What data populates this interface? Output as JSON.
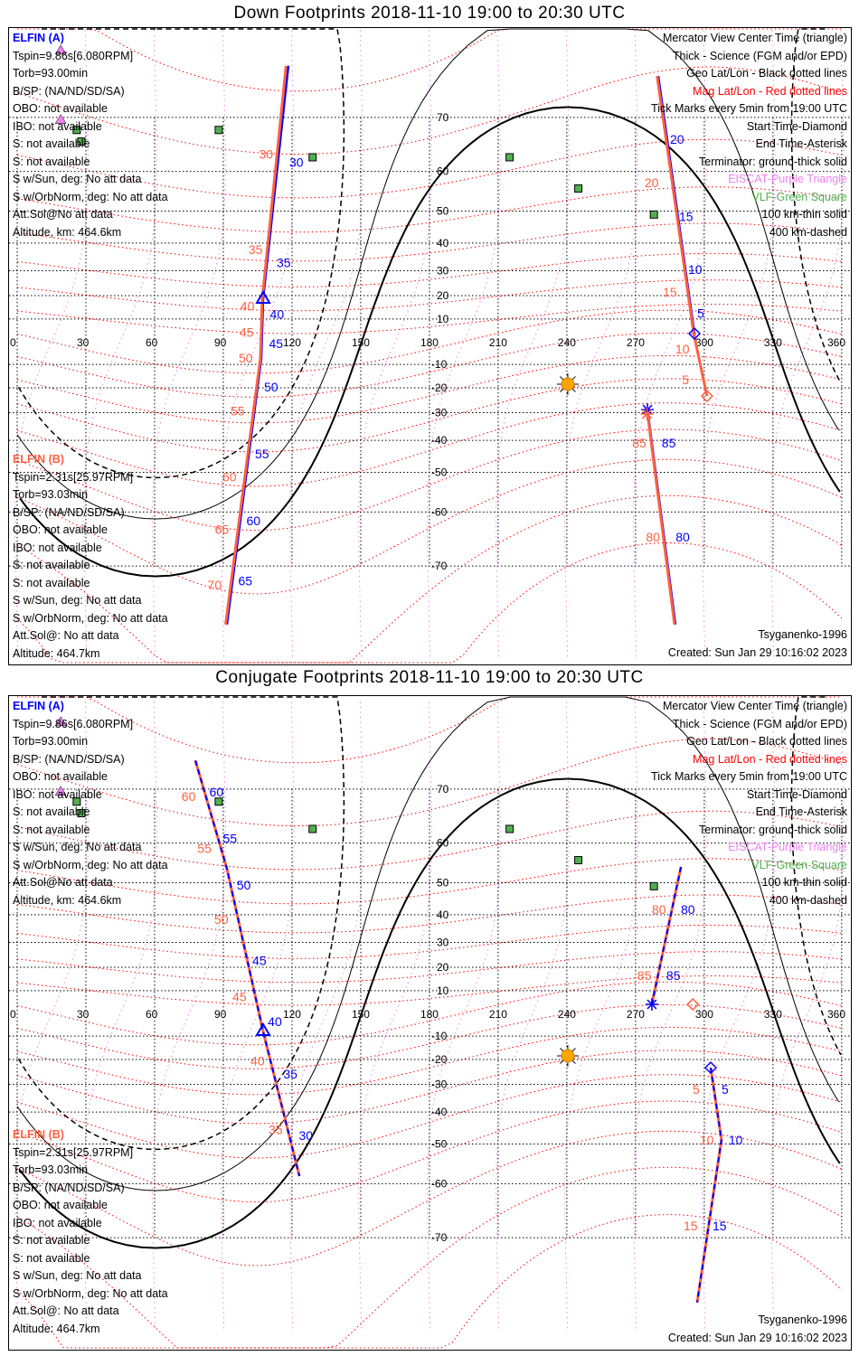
{
  "panels": [
    {
      "title": "Down Footprints 2018-11-10 19:00 to 20:30 UTC",
      "sat_a": {
        "name": "ELFIN (A)",
        "color": "#0000ff",
        "lines": [
          "Tspin=9.86s[6.080RPM]",
          "Torb=93.00min",
          "B/SP: (NA/ND/SD/SA)",
          "OBO: not available",
          "IBO: not available",
          "S: not available",
          "S: not available",
          "S w/Sun, deg: No att data",
          "S w/OrbNorm, deg: No att data",
          "Att.Sol@No att data",
          "Altitude, km: 464.6km"
        ]
      },
      "sat_b": {
        "name": "ELFIN (B)",
        "color": "#ff6040",
        "lines": [
          "Tspin=2.31s[25.97RPM]",
          "Torb=93.03min",
          "B/SP: (NA/ND/SD/SA)",
          "OBO: not available",
          "IBO: not available",
          "S: not available",
          "S: not available",
          "S w/Sun, deg: No att data",
          "S w/OrbNorm, deg: No att data",
          "Att.Sol@: No att data",
          "Altitude: 464.7km"
        ]
      },
      "footer_right": [
        "Tsyganenko-1996",
        "Created: Sun Jan 29 10:16:02 2023"
      ]
    },
    {
      "title": "Conjugate Footprints 2018-11-10 19:00 to 20:30 UTC",
      "sat_a": {
        "name": "ELFIN (A)",
        "color": "#0000ff",
        "lines": [
          "Tspin=9.86s[6.080RPM]",
          "Torb=93.00min",
          "B/SP: (NA/ND/SD/SA)",
          "OBO: not available",
          "IBO: not available",
          "S: not available",
          "S: not available",
          "S w/Sun, deg: No att data",
          "S w/OrbNorm, deg: No att data",
          "Att.Sol@No att data",
          "Altitude, km: 464.6km"
        ]
      },
      "sat_b": {
        "name": "ELFIN (B)",
        "color": "#ff6040",
        "lines": [
          "Tspin=2.31s[25.97RPM]",
          "Torb=93.03min",
          "B/SP: (NA/ND/SD/SA)",
          "OBO: not available",
          "IBO: not available",
          "S: not available",
          "S: not available",
          "S w/Sun, deg: No att data",
          "S w/OrbNorm, deg: No att data",
          "Att.Sol@: No att data",
          "Altitude: 464.7km"
        ]
      },
      "footer_right": [
        "Tsyganenko-1996",
        "Created: Sun Jan 29 10:16:02 2023"
      ]
    }
  ],
  "legend": [
    {
      "text": "Mercator View Center Time (triangle)",
      "color": "#000000"
    },
    {
      "text": "Thick - Science (FGM and/or EPD)",
      "color": "#000000"
    },
    {
      "text": "Geo Lat/Lon - Black dotted lines",
      "color": "#000000"
    },
    {
      "text": "Mag Lat/Lon - Red dotted lines",
      "color": "#ff0000"
    },
    {
      "text": "Tick Marks every 5min from 19:00 UTC",
      "color": "#000000"
    },
    {
      "text": "Start Time-Diamond",
      "color": "#000000"
    },
    {
      "text": "End Time-Asterisk",
      "color": "#000000"
    },
    {
      "text": "Terminator: ground-thick solid",
      "color": "#000000"
    },
    {
      "text": "EISCAT-Purple Triangle",
      "color": "#ee82ee"
    },
    {
      "text": "VLF-Green Square",
      "color": "#50b050"
    },
    {
      "text": "100 km-thin solid",
      "color": "#000000"
    },
    {
      "text": "400 km-dashed",
      "color": "#000000"
    }
  ],
  "chart_data": {
    "type": "map",
    "projection": "mercator",
    "lon_ticks": [
      "0",
      "30",
      "60",
      "90",
      "120",
      "150",
      "180",
      "210",
      "240",
      "270",
      "300",
      "330",
      "360"
    ],
    "lat_ticks": [
      "70",
      "60",
      "50",
      "40",
      "30",
      "20",
      "10",
      "-10",
      "-20",
      "-30",
      "-40",
      "-50",
      "-60",
      "-70"
    ],
    "subsolar": {
      "lon": 240.4,
      "lat": -18.5
    },
    "vlf_stations": [
      [
        88,
        68
      ],
      [
        26,
        68
      ],
      [
        28,
        66
      ],
      [
        129,
        63
      ],
      [
        215,
        63
      ],
      [
        245,
        56
      ],
      [
        278,
        49
      ]
    ],
    "eiscat": [
      [
        19,
        69.6
      ],
      [
        19,
        78
      ]
    ],
    "maps": [
      {
        "tracks": [
          {
            "sat": "A",
            "color": "#0000ff",
            "points": [
              [
                118.4,
                76.5
              ],
              [
                107.4,
                18.5
              ],
              [
                106.6,
                -7.2
              ],
              [
                98.7,
                -56.8
              ],
              [
                91.6,
                -77.2
              ]
            ],
            "labels": [
              "30",
              "35",
              "40",
              "45",
              "50",
              "55",
              "60",
              "65"
            ],
            "dashed": false
          },
          {
            "sat": "B",
            "color": "#ff6040",
            "points": [
              [
                117.4,
                76.5
              ],
              [
                107.0,
                18.5
              ],
              [
                106.2,
                -7.2
              ],
              [
                98.2,
                -56.8
              ],
              [
                91.0,
                -77.2
              ]
            ],
            "labels": [
              "30",
              "35",
              "40",
              "45",
              "50",
              "55",
              "60",
              "65",
              "70"
            ],
            "dashed": false
          },
          {
            "sat": "A",
            "color": "#0000ff",
            "points": [
              [
                279.9,
                75.4
              ],
              [
                295.7,
                3.6
              ]
            ],
            "labels": [
              "20",
              "15",
              "10",
              "5"
            ],
            "dashed": false
          },
          {
            "sat": "B",
            "color": "#ff6040",
            "points": [
              [
                279.4,
                75.4
              ],
              [
                295.4,
                3.6
              ],
              [
                301.2,
                -23.4
              ]
            ],
            "labels": [
              "20",
              "15",
              "10",
              "5"
            ],
            "dashed": false
          },
          {
            "sat": "B",
            "color": "#0000ff",
            "points": [
              [
                275.2,
                -28.8
              ],
              [
                287.4,
                -77.2
              ]
            ],
            "labels": [
              "85",
              "80"
            ],
            "dashed": false
          },
          {
            "sat": "B",
            "color": "#ff6040",
            "points": [
              [
                275.0,
                -28.8
              ],
              [
                287.0,
                -77.2
              ]
            ],
            "labels": [
              "85",
              "80"
            ],
            "dashed": false
          }
        ],
        "start_diamonds": [
          [
            295.7,
            3.6,
            "#0000ff"
          ],
          [
            301.2,
            -23.4,
            "#ff6040"
          ]
        ],
        "end_asterisks": [
          [
            275.2,
            -28.8,
            "#0000ff"
          ],
          [
            275.0,
            -30.5,
            "#ff6040"
          ]
        ],
        "center_triangles": [
          [
            107.4,
            18.5
          ]
        ]
      },
      {
        "tracks": [
          {
            "sat": "A",
            "color": "#ff6040",
            "points": [
              [
                77.8,
                73.9
              ],
              [
                91.6,
                53.8
              ],
              [
                107.4,
                -8.0
              ],
              [
                123.2,
                -58.3
              ]
            ],
            "labels": [
              "60",
              "55",
              "50",
              "45",
              "40",
              "35"
            ],
            "dashed": false
          },
          {
            "sat": "A",
            "color": "#0000ff",
            "points": [
              [
                77.8,
                73.9
              ],
              [
                91.6,
                53.8
              ],
              [
                107.4,
                -8.0
              ],
              [
                123.2,
                -58.3
              ]
            ],
            "labels": [
              "60",
              "55",
              "50",
              "45",
              "40",
              "35",
              "30"
            ],
            "dashed": true
          },
          {
            "sat": "B",
            "color": "#ff6040",
            "points": [
              [
                289.8,
                54.3
              ],
              [
                277.1,
                4.0
              ]
            ],
            "labels": [
              "80",
              "85"
            ],
            "dashed": false
          },
          {
            "sat": "B",
            "color": "#0000ff",
            "points": [
              [
                289.8,
                54.3
              ],
              [
                277.1,
                4.0
              ]
            ],
            "labels": [
              "80",
              "85"
            ],
            "dashed": true
          },
          {
            "sat": "A",
            "color": "#ff6040",
            "points": [
              [
                302.8,
                -23.4
              ],
              [
                307.5,
                -48.8
              ],
              [
                296.9,
                -77.8
              ]
            ],
            "labels": [
              "5",
              "10",
              "15"
            ],
            "dashed": false
          },
          {
            "sat": "A",
            "color": "#0000ff",
            "points": [
              [
                302.8,
                -23.4
              ],
              [
                307.5,
                -48.8
              ],
              [
                296.9,
                -77.8
              ]
            ],
            "labels": [
              "5",
              "10",
              "15"
            ],
            "dashed": true
          }
        ],
        "start_diamonds": [
          [
            302.8,
            -23.4,
            "#0000ff"
          ],
          [
            295.0,
            4.0,
            "#ff6040"
          ]
        ],
        "end_asterisks": [
          [
            277.1,
            4.0,
            "#0000ff"
          ]
        ],
        "center_triangles": [
          [
            107.4,
            -8.0
          ]
        ]
      }
    ]
  }
}
